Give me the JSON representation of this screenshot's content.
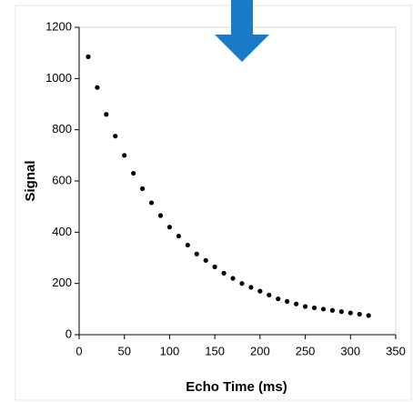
{
  "chart_data": {
    "type": "scatter",
    "x_label": "Echo Time (ms)",
    "y_label": "Signal",
    "x": [
      10,
      20,
      30,
      40,
      50,
      60,
      70,
      80,
      90,
      100,
      110,
      120,
      130,
      140,
      150,
      160,
      170,
      180,
      190,
      200,
      210,
      220,
      230,
      240,
      250,
      260,
      270,
      280,
      290,
      300,
      310,
      320
    ],
    "values": [
      1085,
      965,
      860,
      775,
      700,
      630,
      570,
      515,
      465,
      420,
      385,
      350,
      315,
      290,
      265,
      240,
      220,
      200,
      185,
      170,
      155,
      140,
      130,
      120,
      110,
      105,
      100,
      95,
      90,
      85,
      80,
      75
    ],
    "color": "#000000",
    "xlim": [
      0,
      350
    ],
    "xticks": [
      0,
      50,
      100,
      150,
      200,
      250,
      300,
      350
    ],
    "ylim": [
      0,
      1200
    ],
    "yticks": [
      0,
      200,
      400,
      600,
      800,
      1000,
      1200
    ]
  }
}
